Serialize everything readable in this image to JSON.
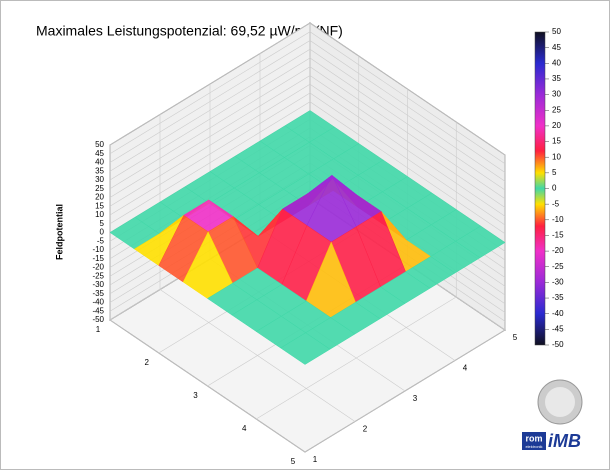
{
  "chart_data": {
    "type": "surface3d",
    "title": "Maximales Leistungspotenzial:  69,52  µW/m² (NF)",
    "zlabel": "Feldpotential",
    "zlim": [
      -50,
      50
    ],
    "zticks": [
      50,
      45,
      40,
      35,
      30,
      25,
      20,
      15,
      10,
      5,
      0,
      -5,
      -10,
      -15,
      -20,
      -25,
      -30,
      -35,
      -40,
      -45,
      -50
    ],
    "xlim": [
      1,
      5
    ],
    "xticks": [
      1,
      2,
      3,
      4,
      5
    ],
    "ylim": [
      1,
      5
    ],
    "yticks": [
      1,
      2,
      3,
      4,
      5
    ],
    "surface": {
      "x": [
        1,
        1.5,
        2,
        2.5,
        3,
        3.5,
        4,
        4.5,
        5
      ],
      "y": [
        1,
        1.5,
        2,
        2.5,
        3,
        3.5,
        4,
        4.5,
        5
      ],
      "z": [
        [
          0,
          0,
          0,
          0,
          0,
          0,
          0,
          0,
          0
        ],
        [
          0,
          0,
          0,
          0,
          0,
          0,
          0,
          0,
          0
        ],
        [
          0,
          20,
          20,
          0,
          0,
          0,
          0,
          0,
          0
        ],
        [
          0,
          20,
          20,
          0,
          0,
          0,
          0,
          0,
          0
        ],
        [
          0,
          0,
          0,
          25,
          25,
          25,
          0,
          0,
          0
        ],
        [
          0,
          0,
          0,
          25,
          45,
          25,
          0,
          0,
          0
        ],
        [
          0,
          0,
          0,
          25,
          25,
          25,
          0,
          0,
          0
        ],
        [
          0,
          0,
          0,
          0,
          0,
          0,
          0,
          0,
          0
        ],
        [
          0,
          0,
          0,
          0,
          0,
          0,
          0,
          0,
          0
        ]
      ]
    },
    "colorbar": {
      "ticks": [
        50,
        45,
        40,
        35,
        30,
        25,
        20,
        15,
        10,
        5,
        0,
        -5,
        -10,
        -15,
        -20,
        -25,
        -30,
        -35,
        -40,
        -45,
        -50
      ],
      "colorscale": [
        {
          "value": -50,
          "color": "#101020"
        },
        {
          "value": -40,
          "color": "#2a2ad0"
        },
        {
          "value": -30,
          "color": "#9a2ad8"
        },
        {
          "value": -20,
          "color": "#f030c8"
        },
        {
          "value": -12,
          "color": "#ff2040"
        },
        {
          "value": -5,
          "color": "#ffe000"
        },
        {
          "value": 0,
          "color": "#40d8a8"
        },
        {
          "value": 5,
          "color": "#ffe000"
        },
        {
          "value": 12,
          "color": "#ff2040"
        },
        {
          "value": 20,
          "color": "#f030c8"
        },
        {
          "value": 30,
          "color": "#9a2ad8"
        },
        {
          "value": 40,
          "color": "#2a2ad0"
        },
        {
          "value": 50,
          "color": "#101020"
        }
      ]
    },
    "logo": {
      "brand": "rom",
      "sub": "elektronik",
      "name": "iMB"
    }
  }
}
